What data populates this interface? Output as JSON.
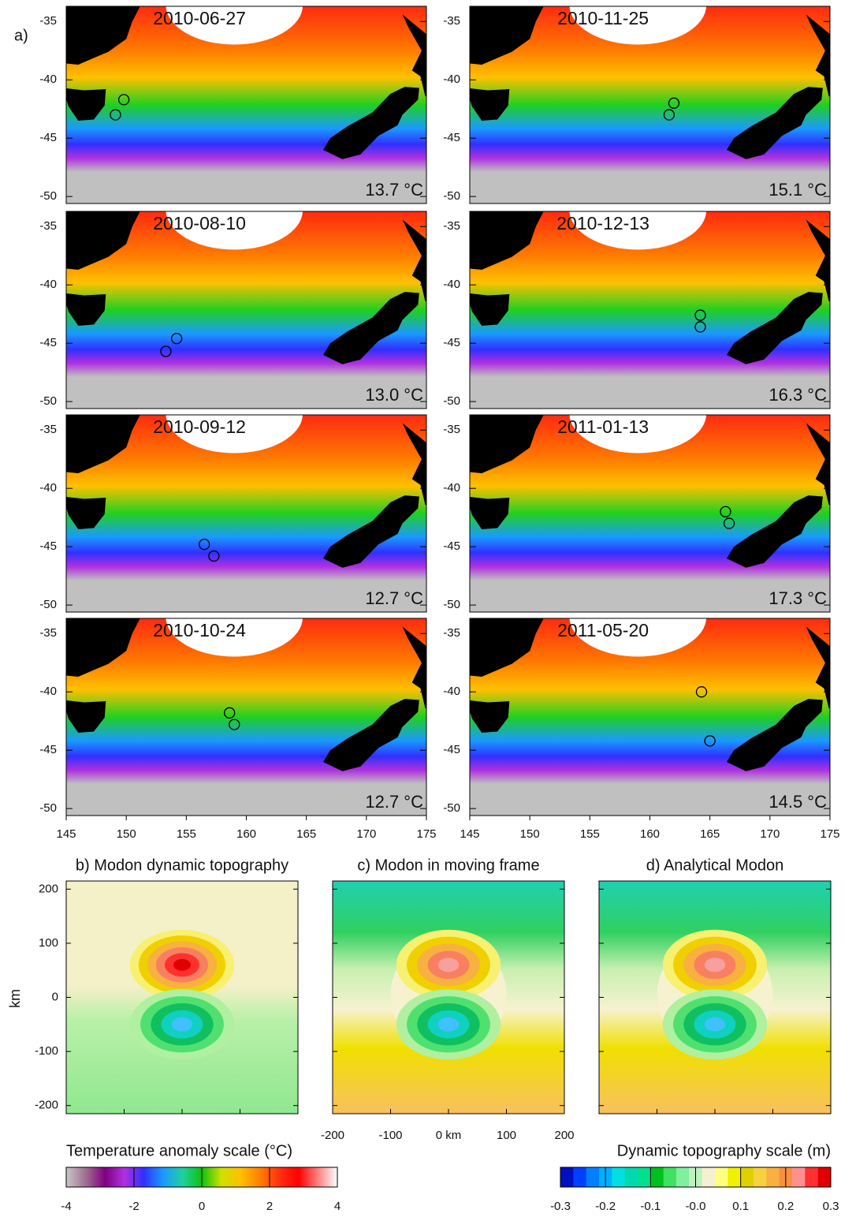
{
  "panel_label": "a)",
  "map_lonlim": [
    145,
    175
  ],
  "map_latlim": [
    -50.6,
    -33.7
  ],
  "map_lat_ticks": [
    -35,
    -40,
    -45,
    -50
  ],
  "map_lon_ticks": [
    145,
    150,
    155,
    160,
    165,
    170,
    175
  ],
  "maps": [
    {
      "date": "2010-06-27",
      "temperature": "13.7 °C",
      "eddies": [
        [
          149.8,
          -41.7
        ],
        [
          149.1,
          -43.0
        ]
      ]
    },
    {
      "date": "2010-11-25",
      "temperature": "15.1 °C",
      "eddies": [
        [
          162.0,
          -42.0
        ],
        [
          161.6,
          -43.0
        ]
      ]
    },
    {
      "date": "2010-08-10",
      "temperature": "13.0 °C",
      "eddies": [
        [
          154.2,
          -44.6
        ],
        [
          153.3,
          -45.7
        ]
      ]
    },
    {
      "date": "2010-12-13",
      "temperature": "16.3 °C",
      "eddies": [
        [
          164.2,
          -42.6
        ],
        [
          164.2,
          -43.6
        ]
      ]
    },
    {
      "date": "2010-09-12",
      "temperature": "12.7 °C",
      "eddies": [
        [
          156.5,
          -44.8
        ],
        [
          157.3,
          -45.8
        ]
      ]
    },
    {
      "date": "2011-01-13",
      "temperature": "17.3 °C",
      "eddies": [
        [
          166.3,
          -42.0
        ],
        [
          166.6,
          -43.0
        ]
      ]
    },
    {
      "date": "2010-10-24",
      "temperature": "12.7 °C",
      "eddies": [
        [
          158.6,
          -41.8
        ],
        [
          159.0,
          -42.8
        ]
      ]
    },
    {
      "date": "2011-05-20",
      "temperature": "14.5 °C",
      "eddies": [
        [
          164.3,
          -40.0
        ],
        [
          165.0,
          -44.2
        ]
      ]
    }
  ],
  "modon_panels": [
    {
      "title": "b) Modon dynamic topography"
    },
    {
      "title": "c) Modon in moving frame"
    },
    {
      "title": "d) Analytical Modon"
    }
  ],
  "modon_y_label": "km",
  "modon_xlim": [
    -200,
    200
  ],
  "modon_ylim": [
    -215,
    215
  ],
  "modon_yticks": [
    200,
    100,
    0,
    -100,
    -200
  ],
  "modon_xticks": [
    -200,
    -100,
    {
      "value": 0,
      "label": "0 km"
    },
    100,
    200
  ],
  "temperature_scale": {
    "title": "Temperature anomaly scale (°C)",
    "lim": [
      -4,
      4
    ],
    "ticks": [
      -4,
      -2,
      0,
      2,
      4
    ],
    "colors": [
      "#c8c8c8",
      "#a07090",
      "#800080",
      "#b030e0",
      "#3030ff",
      "#1a9aff",
      "#20d0a0",
      "#10c010",
      "#d0e000",
      "#ffc000",
      "#ff8000",
      "#ff3010",
      "#ff0000",
      "#ff8080",
      "#ffffff"
    ]
  },
  "topography_scale": {
    "title": "Dynamic topography scale (m)",
    "lim": [
      -0.3,
      0.3
    ],
    "ticks": [
      -0.3,
      -0.2,
      -0.1,
      {
        "value": 0,
        "label": "-0.0"
      },
      0.1,
      0.2,
      0.3
    ],
    "colors": [
      "#0010c0",
      "#0040ff",
      "#0080ff",
      "#00b0ff",
      "#00e0e0",
      "#00d8b0",
      "#00e090",
      "#00c020",
      "#40e060",
      "#80f0a0",
      "#c0f0c0",
      "#f4f0d0",
      "#ffff80",
      "#f0f000",
      "#e0d000",
      "#f8d040",
      "#f8b040",
      "#f89040",
      "#ff9090",
      "#ff3030",
      "#e00000"
    ]
  }
}
